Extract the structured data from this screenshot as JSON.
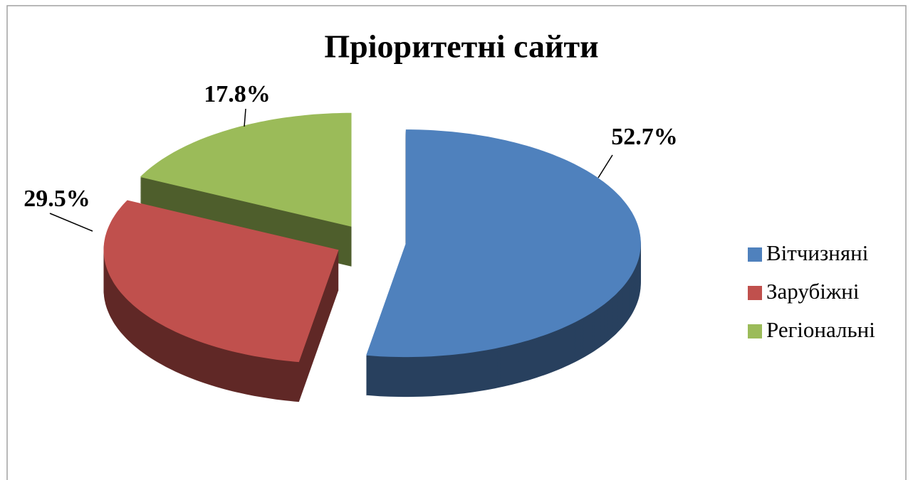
{
  "chart_data": {
    "type": "pie",
    "title": "Пріоритетні сайти",
    "categories": [
      "Вітчизняні",
      "Зарубіжні",
      "Регіональні"
    ],
    "values": [
      52.7,
      29.5,
      17.8
    ],
    "value_labels": [
      "52.7%",
      "29.5%",
      "17.8%"
    ],
    "colors": [
      "#4f81bd",
      "#c0504d",
      "#9bbb59"
    ],
    "legend": "right"
  }
}
